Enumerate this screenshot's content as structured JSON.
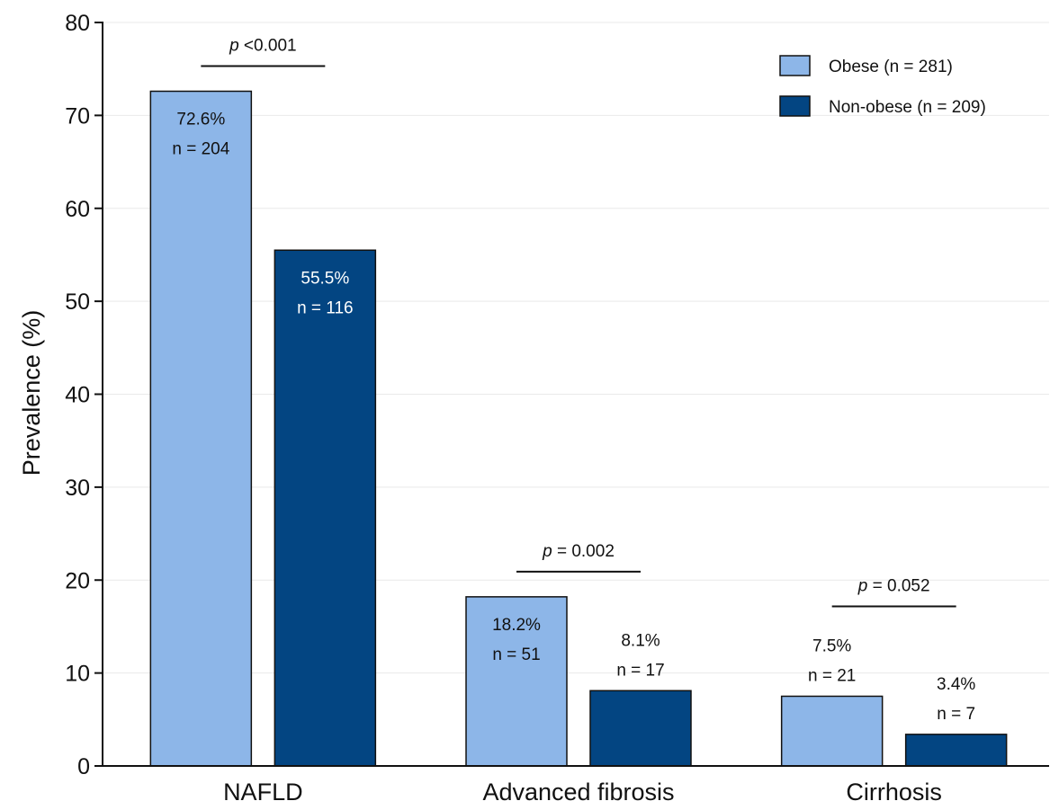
{
  "chart_data": {
    "type": "bar",
    "ylabel": "Prevalence (%)",
    "xlabel": "",
    "ylim": [
      0,
      80
    ],
    "yticks": [
      0,
      10,
      20,
      30,
      40,
      50,
      60,
      70,
      80
    ],
    "grid": true,
    "legend_position": "top-right",
    "categories": [
      "NAFLD",
      "Advanced fibrosis",
      "Cirrhosis"
    ],
    "series": [
      {
        "name": "Obese (n = 281)",
        "color": "#8DB6E8",
        "values": [
          72.6,
          18.2,
          7.5
        ],
        "labels": [
          [
            "72.6%",
            "n = 204"
          ],
          [
            "18.2%",
            "n = 51"
          ],
          [
            "7.5%",
            "n = 21"
          ]
        ]
      },
      {
        "name": "Non-obese (n = 209)",
        "color": "#034582",
        "values": [
          55.5,
          8.1,
          3.4
        ],
        "labels": [
          [
            "55.5%",
            "n = 116"
          ],
          [
            "8.1%",
            "n = 17"
          ],
          [
            "3.4%",
            "n = 7"
          ]
        ]
      }
    ],
    "p_values": [
      {
        "prefix": "p",
        "text": " <0.001"
      },
      {
        "prefix": "p",
        "text": " = 0.002"
      },
      {
        "prefix": "p",
        "text": " = 0.052"
      }
    ]
  }
}
